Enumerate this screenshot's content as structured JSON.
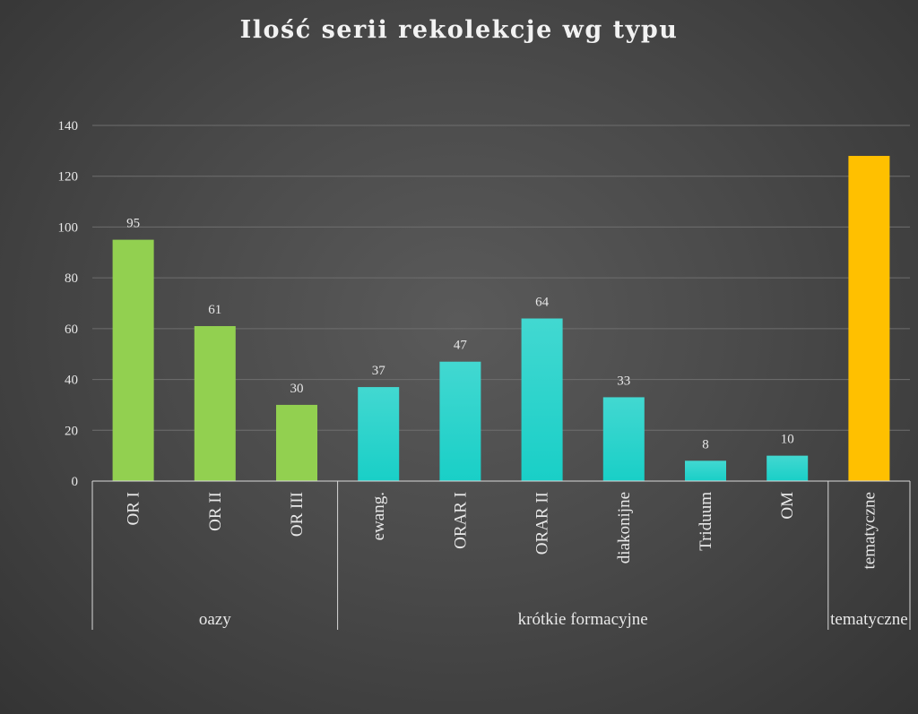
{
  "chart_data": {
    "type": "bar",
    "title": "Ilość serii rekolekcje wg typu",
    "xlabel": "",
    "ylabel": "",
    "ylim": [
      0,
      140
    ],
    "yticks": [
      0,
      20,
      40,
      60,
      80,
      100,
      120,
      140
    ],
    "grid": true,
    "legend": "none",
    "categories": [
      "OR I",
      "OR II",
      "OR III",
      "ewang.",
      "ORAR I",
      "ORAR II",
      "diakonijne",
      "Triduum",
      "OM",
      "tematyczne"
    ],
    "values": [
      95,
      61,
      30,
      37,
      47,
      64,
      33,
      8,
      10,
      128
    ],
    "data_labels": [
      "95",
      "61",
      "30",
      "37",
      "47",
      "64",
      "33",
      "8",
      "10",
      ""
    ],
    "groups": [
      {
        "label": "oazy",
        "start": 0,
        "end": 2,
        "color": "#92d050"
      },
      {
        "label": "krótkie formacyjne",
        "start": 3,
        "end": 8,
        "color": "#19cfc7"
      },
      {
        "label": "tematyczne",
        "start": 9,
        "end": 9,
        "color": "#ffc000"
      }
    ],
    "colors": {
      "text": "#e8e8e8",
      "gridline": "#6e6e6e",
      "axis": "#d9d9d9"
    }
  }
}
